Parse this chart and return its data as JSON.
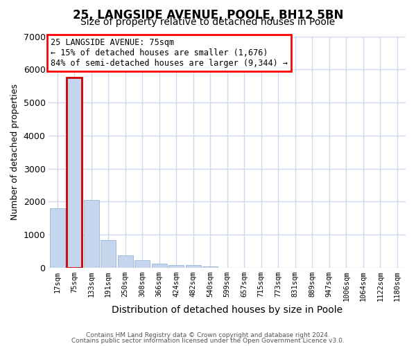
{
  "title1": "25, LANGSIDE AVENUE, POOLE, BH12 5BN",
  "title2": "Size of property relative to detached houses in Poole",
  "xlabel": "Distribution of detached houses by size in Poole",
  "ylabel": "Number of detached properties",
  "categories": [
    "17sqm",
    "75sqm",
    "133sqm",
    "191sqm",
    "250sqm",
    "308sqm",
    "366sqm",
    "424sqm",
    "482sqm",
    "540sqm",
    "599sqm",
    "657sqm",
    "715sqm",
    "773sqm",
    "831sqm",
    "889sqm",
    "947sqm",
    "1006sqm",
    "1064sqm",
    "1122sqm",
    "1180sqm"
  ],
  "values": [
    1800,
    5750,
    2050,
    830,
    380,
    230,
    120,
    85,
    70,
    40,
    5,
    0,
    5,
    0,
    0,
    0,
    0,
    0,
    0,
    0,
    0
  ],
  "highlight_index": 1,
  "bar_color": "#c5d5ee",
  "bar_edge_color": "#9ab5d8",
  "highlight_edge_color": "#cc0000",
  "ylim": [
    0,
    7000
  ],
  "yticks": [
    0,
    1000,
    2000,
    3000,
    4000,
    5000,
    6000,
    7000
  ],
  "annotation_text": "25 LANGSIDE AVENUE: 75sqm\n← 15% of detached houses are smaller (1,676)\n84% of semi-detached houses are larger (9,344) →",
  "footer1": "Contains HM Land Registry data © Crown copyright and database right 2024.",
  "footer2": "Contains public sector information licensed under the Open Government Licence v3.0.",
  "bg_color": "#ffffff",
  "grid_color": "#d0d8f0",
  "title1_fontsize": 12,
  "title2_fontsize": 10,
  "ann_fontsize": 8.5,
  "ylabel_fontsize": 9,
  "xlabel_fontsize": 10,
  "tick_fontsize": 7.5,
  "footer_fontsize": 6.5
}
